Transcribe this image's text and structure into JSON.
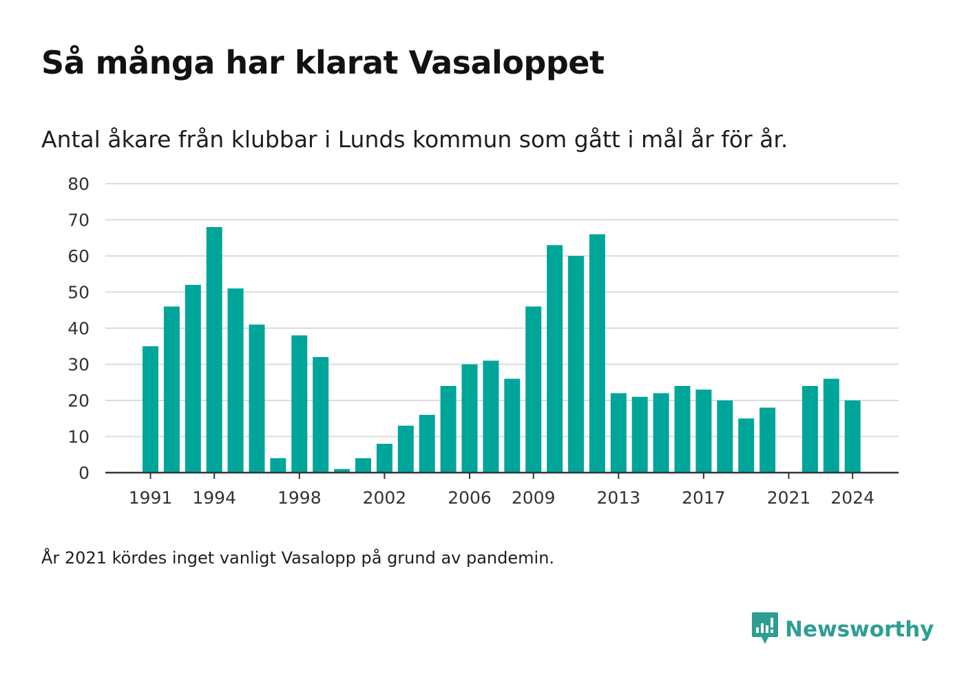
{
  "header": {
    "title": "Så många har klarat Vasaloppet",
    "subtitle": "Antal åkare från klubbar i Lunds kommun som gått i mål år för år."
  },
  "footer": {
    "note": "År 2021 kördes inget vanligt Vasalopp på grund av pandemin.",
    "brand": "Newsworthy",
    "brand_icon": "newsworthy-logo-icon"
  },
  "colors": {
    "bar": "#00a59a",
    "grid": "#dcdcdc",
    "axis": "#333333",
    "brand": "#2e9e93"
  },
  "chart_data": {
    "type": "bar",
    "title": "Så många har klarat Vasaloppet",
    "subtitle": "Antal åkare från klubbar i Lunds kommun som gått i mål år för år.",
    "categories": [
      1991,
      1992,
      1993,
      1994,
      1995,
      1996,
      1997,
      1998,
      1999,
      2000,
      2001,
      2002,
      2003,
      2004,
      2005,
      2006,
      2007,
      2008,
      2009,
      2010,
      2011,
      2012,
      2013,
      2014,
      2015,
      2016,
      2017,
      2018,
      2019,
      2020,
      2021,
      2022,
      2023,
      2024
    ],
    "values": [
      35,
      46,
      52,
      68,
      51,
      41,
      4,
      38,
      32,
      1,
      4,
      8,
      13,
      16,
      24,
      30,
      31,
      26,
      46,
      63,
      60,
      66,
      22,
      21,
      22,
      24,
      23,
      20,
      15,
      18,
      0,
      24,
      26,
      20
    ],
    "x_tick_labels": [
      "1991",
      "1994",
      "1998",
      "2002",
      "2006",
      "2009",
      "2013",
      "2017",
      "2021",
      "2024"
    ],
    "y_ticks": [
      0,
      10,
      20,
      30,
      40,
      50,
      60,
      70,
      80
    ],
    "ylim": [
      0,
      80
    ],
    "xlabel": "",
    "ylabel": "",
    "grid": true,
    "legend": "none"
  }
}
